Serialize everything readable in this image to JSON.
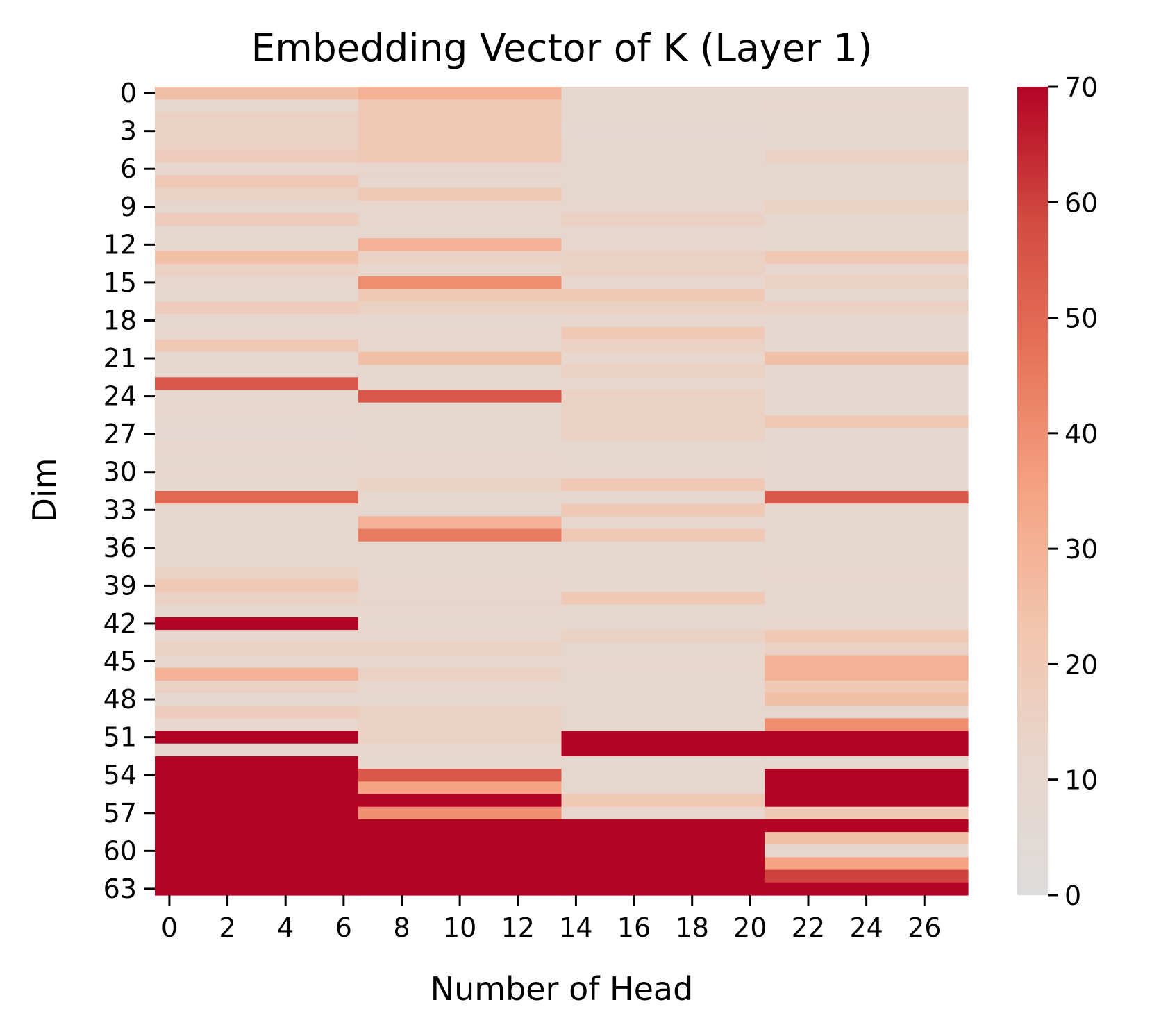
{
  "chart_data": {
    "type": "heatmap",
    "title": "Embedding Vector of K (Layer 1)",
    "xlabel": "Number of Head",
    "ylabel": "Dim",
    "x_tick_labels": [
      "0",
      "2",
      "4",
      "6",
      "8",
      "10",
      "12",
      "14",
      "16",
      "18",
      "20",
      "22",
      "24",
      "26"
    ],
    "y_tick_labels": [
      "0",
      "3",
      "6",
      "9",
      "12",
      "15",
      "18",
      "21",
      "24",
      "27",
      "30",
      "33",
      "36",
      "39",
      "42",
      "45",
      "48",
      "51",
      "54",
      "57",
      "60",
      "63"
    ],
    "colorbar": {
      "ticks": [
        "0",
        "10",
        "20",
        "30",
        "40",
        "50",
        "60",
        "70"
      ],
      "vmin": 0,
      "vmax": 70,
      "colormap": "coolwarm (upper half)",
      "stops": [
        "#dddcdc",
        "#e8d6cc",
        "#f2c4ad",
        "#f5a383",
        "#e7745b",
        "#d24b40",
        "#b40426"
      ]
    },
    "rows": 64,
    "cols": 28,
    "head_groups": [
      {
        "heads": "0-6",
        "dim_values": [
          25,
          10,
          15,
          15,
          15,
          18,
          12,
          20,
          15,
          10,
          18,
          10,
          10,
          25,
          15,
          12,
          10,
          18,
          10,
          12,
          20,
          10,
          10,
          55,
          10,
          12,
          10,
          8,
          12,
          10,
          12,
          10,
          50,
          10,
          10,
          10,
          10,
          10,
          15,
          20,
          15,
          10,
          70,
          12,
          15,
          12,
          30,
          15,
          8,
          18,
          12,
          70,
          12,
          70,
          70,
          70,
          70,
          70,
          70,
          70,
          70,
          70,
          70,
          70
        ]
      },
      {
        "heads": "7-13",
        "dim_values": [
          30,
          20,
          20,
          20,
          20,
          20,
          12,
          12,
          20,
          12,
          12,
          10,
          30,
          15,
          12,
          40,
          20,
          15,
          10,
          12,
          12,
          25,
          10,
          10,
          55,
          10,
          10,
          10,
          10,
          12,
          12,
          15,
          10,
          10,
          30,
          45,
          10,
          10,
          10,
          12,
          12,
          12,
          10,
          12,
          15,
          12,
          15,
          12,
          10,
          15,
          15,
          15,
          12,
          10,
          55,
          35,
          70,
          40,
          70,
          70,
          70,
          70,
          70,
          70
        ]
      },
      {
        "heads": "14-20",
        "dim_values": [
          10,
          10,
          10,
          8,
          10,
          10,
          10,
          10,
          10,
          12,
          15,
          12,
          12,
          15,
          15,
          12,
          20,
          15,
          12,
          20,
          15,
          12,
          15,
          12,
          15,
          15,
          15,
          15,
          10,
          10,
          12,
          20,
          10,
          20,
          12,
          20,
          10,
          10,
          10,
          10,
          20,
          10,
          10,
          15,
          10,
          12,
          10,
          10,
          10,
          10,
          10,
          70,
          70,
          10,
          10,
          10,
          20,
          12,
          70,
          70,
          70,
          70,
          70,
          70
        ]
      },
      {
        "heads": "21-27",
        "dim_values": [
          10,
          12,
          10,
          10,
          10,
          15,
          10,
          10,
          10,
          15,
          10,
          10,
          10,
          20,
          12,
          15,
          10,
          15,
          8,
          8,
          8,
          25,
          8,
          8,
          8,
          8,
          20,
          8,
          8,
          8,
          8,
          8,
          55,
          10,
          10,
          10,
          10,
          10,
          12,
          10,
          10,
          10,
          12,
          20,
          15,
          30,
          30,
          20,
          25,
          10,
          40,
          70,
          70,
          10,
          70,
          70,
          70,
          20,
          70,
          25,
          10,
          35,
          60,
          70
        ]
      }
    ]
  }
}
